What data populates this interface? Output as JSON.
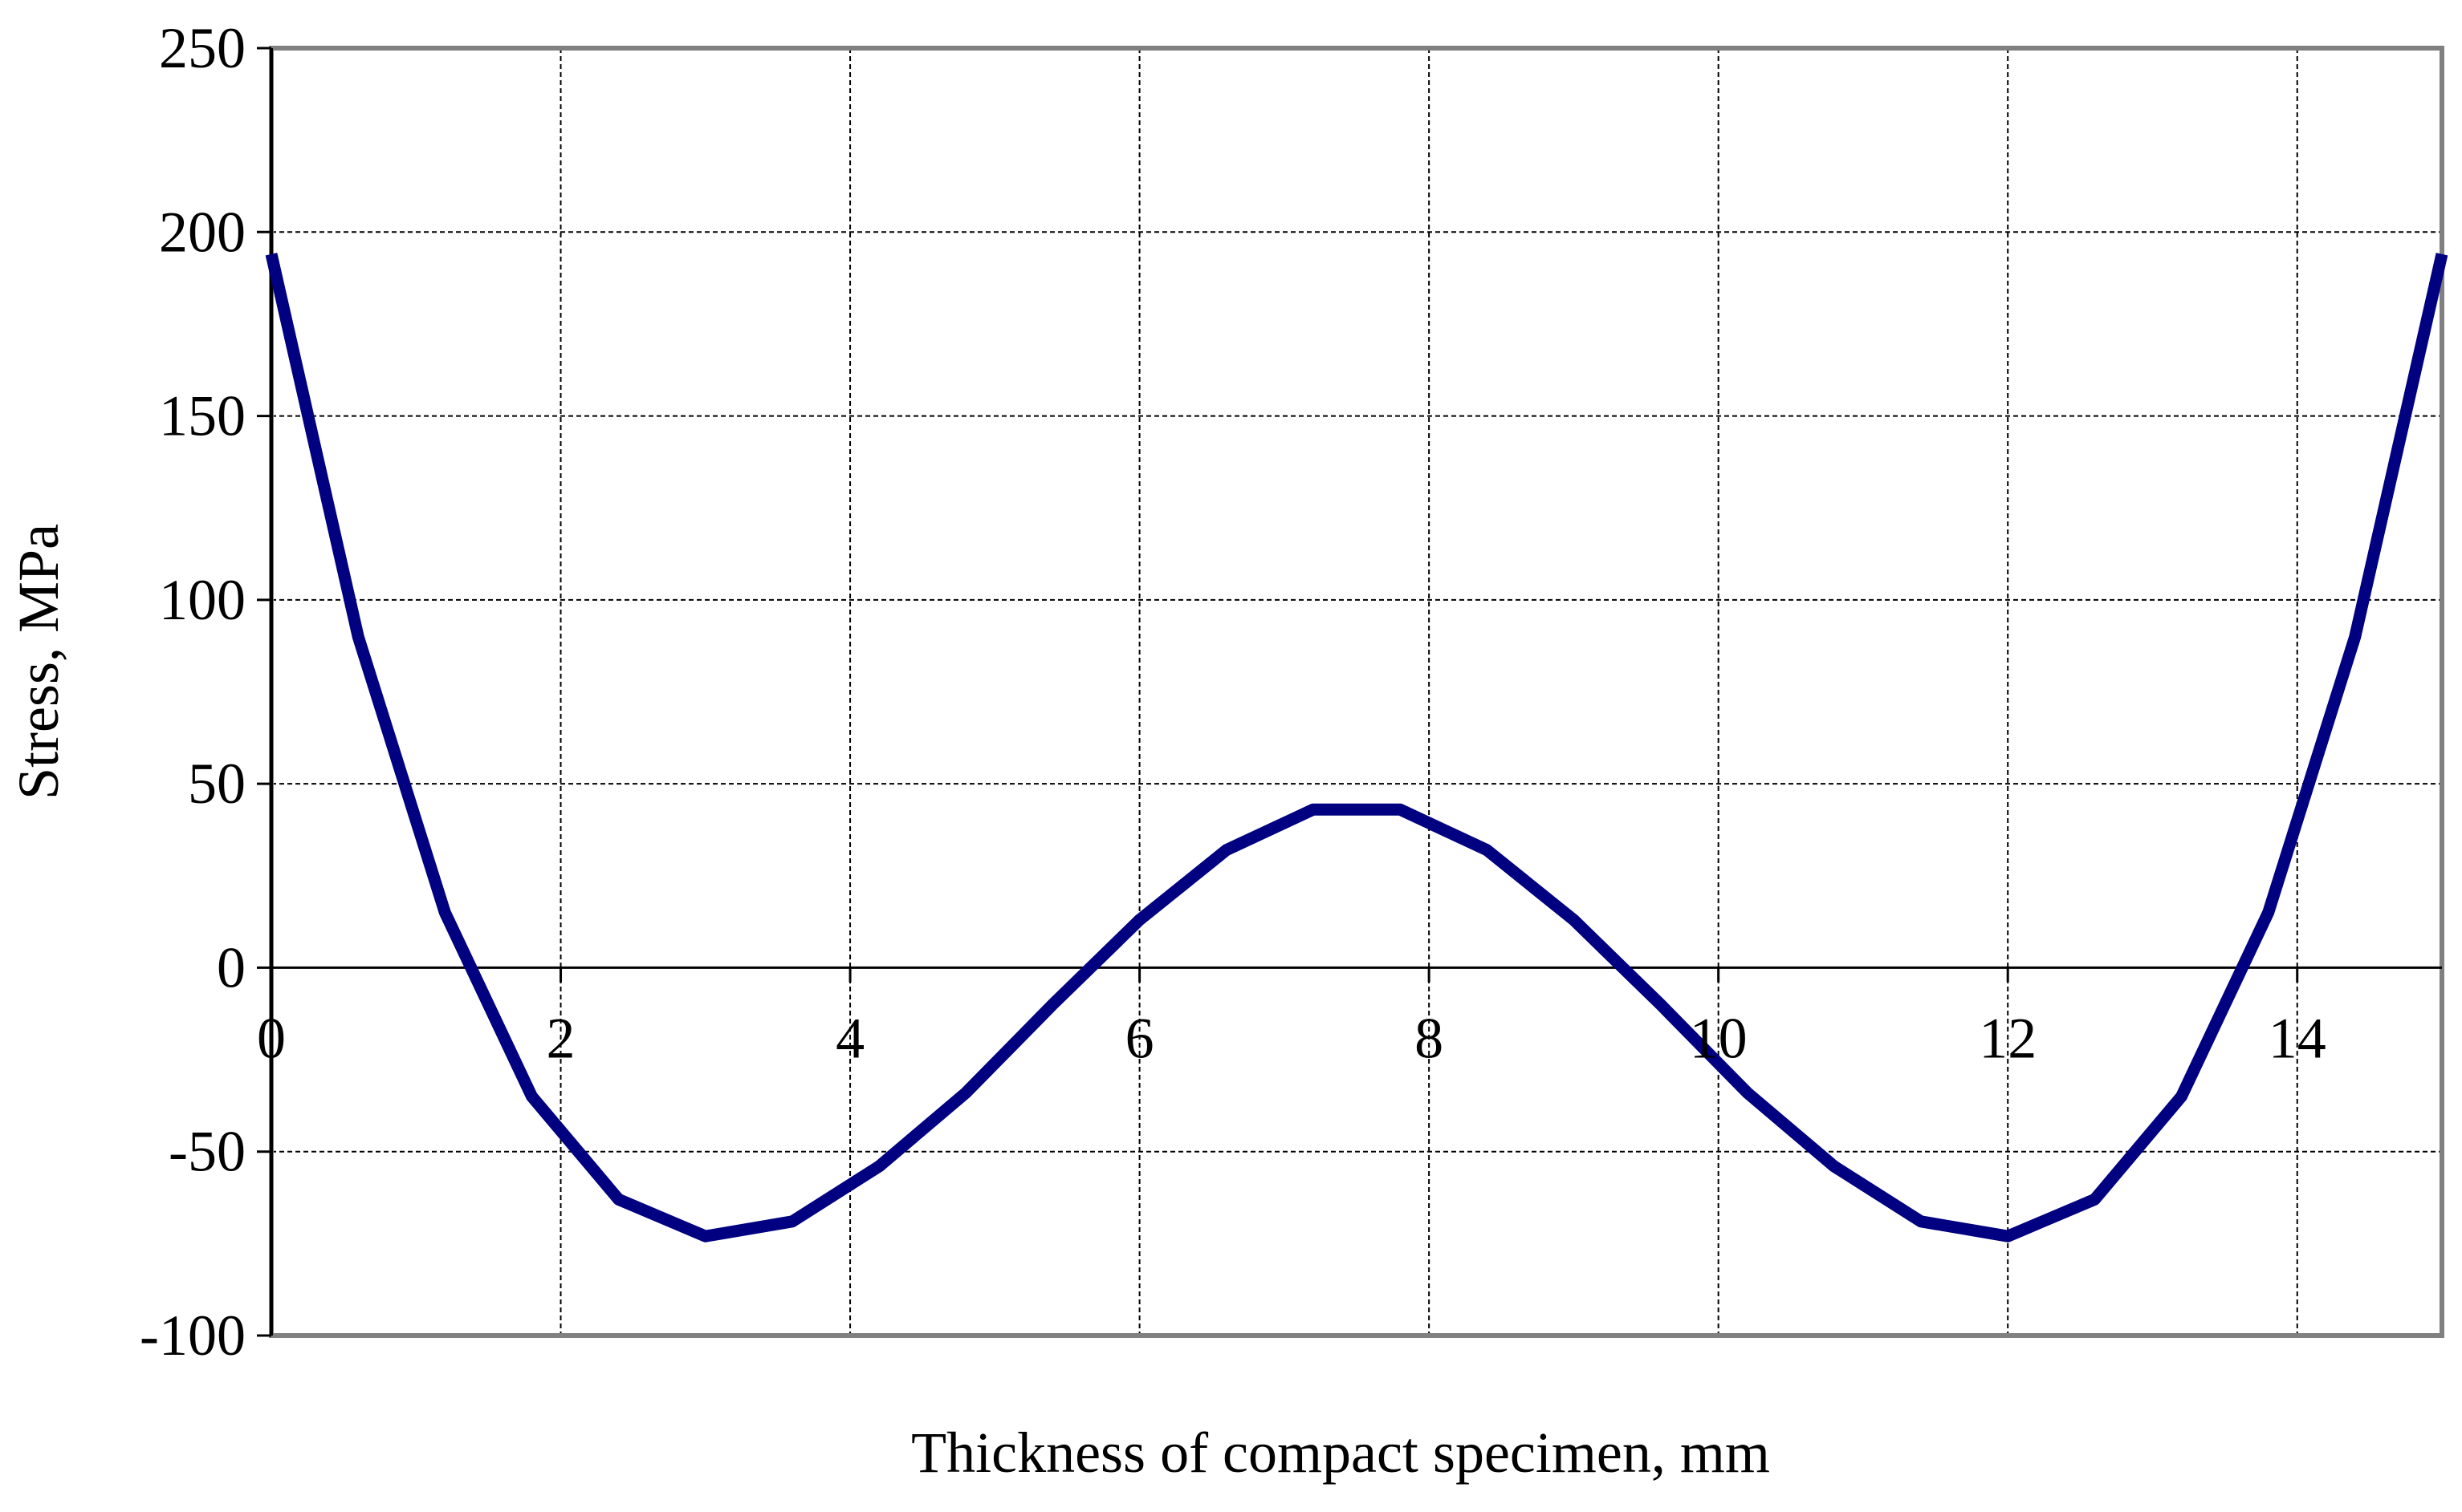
{
  "chart_data": {
    "type": "line",
    "title": "",
    "xlabel": "Thickness of compact specimen, mm",
    "ylabel": "Stress, MPa",
    "xlim": [
      0,
      15
    ],
    "ylim": [
      -100,
      250
    ],
    "x_ticks": [
      0,
      2,
      4,
      6,
      8,
      10,
      12,
      14
    ],
    "x_tick_labels": [
      "0",
      "2",
      "4",
      "6",
      "8",
      "10",
      "12",
      "14"
    ],
    "y_ticks": [
      250,
      200,
      150,
      100,
      50,
      0,
      -50,
      -100
    ],
    "y_tick_labels": [
      "250",
      "200",
      "150",
      "100",
      "50",
      "0",
      "-50",
      "-100"
    ],
    "grid": true,
    "legend": "none",
    "series": [
      {
        "color": "#000080",
        "x": [
          0,
          0.6,
          1.2,
          1.8,
          2.4,
          3.0,
          3.6,
          4.2,
          4.8,
          5.4,
          6.0,
          6.6,
          7.2,
          7.8,
          8.4,
          9.0,
          9.6,
          10.2,
          10.8,
          11.4,
          12.0,
          12.6,
          13.2,
          13.8,
          14.4,
          15.0
        ],
        "y": [
          194,
          90,
          15,
          -35,
          -63,
          -73,
          -69,
          -54,
          -34,
          -10,
          13,
          32,
          43,
          43,
          32,
          13,
          -10,
          -34,
          -54,
          -69,
          -73,
          -63,
          -35,
          15,
          90,
          194
        ]
      }
    ]
  }
}
